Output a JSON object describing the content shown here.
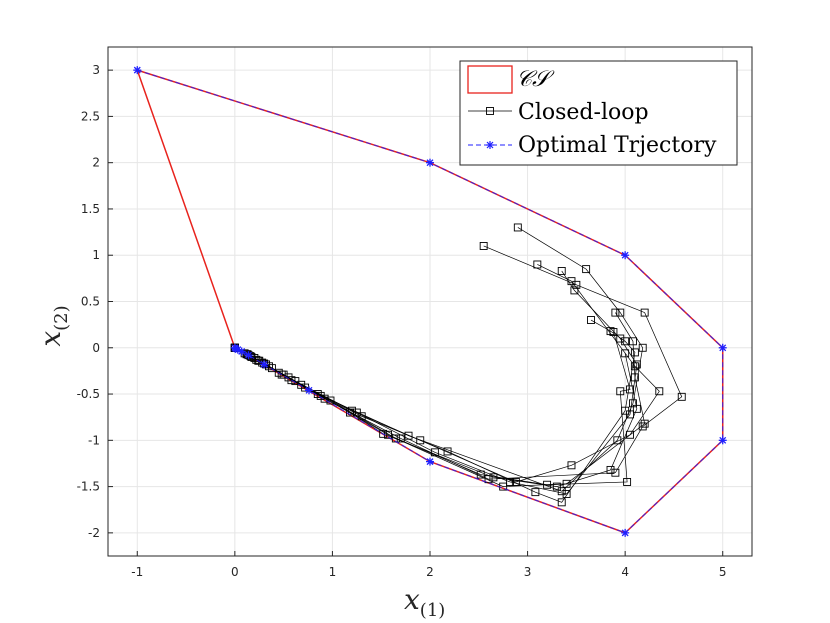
{
  "chart_data": {
    "type": "line",
    "xlim": [
      -1.3,
      5.3
    ],
    "ylim": [
      -2.25,
      3.25
    ],
    "xticks": [
      "-1",
      "0",
      "1",
      "2",
      "3",
      "4",
      "5"
    ],
    "yticks": [
      "-2",
      "-1.5",
      "-1",
      "-0.5",
      "0",
      "0.5",
      "1",
      "1.5",
      "2",
      "2.5",
      "3"
    ],
    "grid": true,
    "xlabel": {
      "main": "x",
      "sub": "(1)"
    },
    "ylabel": {
      "main": "x",
      "sub": "(2)"
    },
    "legend_position": "top-right",
    "constraint_set": {
      "name": "𝒞𝒮",
      "color": "#e8231d",
      "vertices": [
        [
          -1,
          3
        ],
        [
          2,
          2
        ],
        [
          4,
          1
        ],
        [
          5,
          0
        ],
        [
          5,
          -1
        ],
        [
          4,
          -2
        ],
        [
          2,
          -1.23
        ],
        [
          0,
          0
        ]
      ]
    },
    "closed_loop_name": "Closed-loop",
    "optimal_name": "Optimal Trjectory",
    "colors": {
      "closed_loop": "#000000",
      "optimal": "#1f1fff",
      "constraint": "#e8231d"
    },
    "optimal_points": [
      [
        -1,
        3
      ],
      [
        2,
        2
      ],
      [
        4,
        1
      ],
      [
        5,
        0
      ],
      [
        5,
        -1
      ],
      [
        4,
        -2
      ],
      [
        2,
        -1.23
      ],
      [
        0.76,
        -0.46
      ],
      [
        0.3,
        -0.18
      ],
      [
        0.14,
        -0.08
      ],
      [
        0.07,
        -0.04
      ],
      [
        0.03,
        -0.02
      ],
      [
        0.01,
        -0.01
      ],
      [
        0,
        0
      ]
    ],
    "closed_loop_series": [
      [
        [
          2.9,
          1.3
        ],
        [
          3.6,
          0.85
        ],
        [
          3.95,
          0.38
        ],
        [
          4.18,
          0.0
        ],
        [
          4.08,
          -0.6
        ],
        [
          3.92,
          -1.0
        ],
        [
          3.35,
          -1.55
        ],
        [
          1.78,
          -0.95
        ],
        [
          0.85,
          -0.5
        ],
        [
          0.45,
          -0.27
        ],
        [
          0.22,
          -0.13
        ],
        [
          0.1,
          -0.06
        ],
        [
          0,
          0
        ]
      ],
      [
        [
          2.55,
          1.1
        ],
        [
          3.5,
          0.68
        ],
        [
          4.2,
          0.38
        ],
        [
          4.58,
          -0.53
        ],
        [
          4.18,
          -0.85
        ],
        [
          3.9,
          -1.35
        ],
        [
          2.6,
          -1.42
        ],
        [
          1.7,
          -0.98
        ],
        [
          0.92,
          -0.55
        ],
        [
          0.48,
          -0.29
        ],
        [
          0.25,
          -0.14
        ],
        [
          0.12,
          -0.07
        ],
        [
          0,
          0
        ]
      ],
      [
        [
          3.1,
          0.9
        ],
        [
          3.45,
          0.72
        ],
        [
          4.1,
          -0.2
        ],
        [
          4.35,
          -0.47
        ],
        [
          4.05,
          -0.94
        ],
        [
          3.45,
          -1.27
        ],
        [
          2.88,
          -1.45
        ],
        [
          1.9,
          -1.0
        ],
        [
          1.2,
          -0.68
        ],
        [
          0.62,
          -0.36
        ],
        [
          0.3,
          -0.17
        ],
        [
          0.14,
          -0.08
        ],
        [
          0,
          0
        ]
      ],
      [
        [
          3.35,
          0.83
        ],
        [
          3.48,
          0.62
        ],
        [
          3.95,
          0.1
        ],
        [
          4.12,
          -0.18
        ],
        [
          4.05,
          -0.72
        ],
        [
          3.4,
          -1.58
        ],
        [
          2.82,
          -1.45
        ],
        [
          2.05,
          -1.13
        ],
        [
          1.25,
          -0.7
        ],
        [
          0.68,
          -0.4
        ],
        [
          0.35,
          -0.2
        ],
        [
          0.17,
          -0.1
        ],
        [
          0,
          0
        ]
      ],
      [
        [
          3.65,
          0.3
        ],
        [
          3.85,
          0.18
        ],
        [
          4.0,
          0.07
        ],
        [
          4.1,
          -0.05
        ],
        [
          4.0,
          -0.68
        ],
        [
          3.35,
          -1.67
        ],
        [
          3.08,
          -1.56
        ],
        [
          2.18,
          -1.12
        ],
        [
          1.3,
          -0.74
        ],
        [
          0.72,
          -0.43
        ],
        [
          0.38,
          -0.22
        ],
        [
          0.2,
          -0.11
        ],
        [
          0,
          0
        ]
      ],
      [
        [
          3.9,
          0.38
        ],
        [
          4.08,
          0.07
        ],
        [
          4.1,
          -0.32
        ],
        [
          4.2,
          -0.82
        ],
        [
          3.4,
          -1.47
        ],
        [
          2.75,
          -1.5
        ],
        [
          1.65,
          -0.98
        ],
        [
          0.98,
          -0.57
        ],
        [
          0.55,
          -0.32
        ],
        [
          0.28,
          -0.16
        ],
        [
          0.13,
          -0.07
        ],
        [
          0,
          0
        ]
      ],
      [
        [
          3.88,
          0.17
        ],
        [
          4.05,
          -0.45
        ],
        [
          3.95,
          -0.47
        ],
        [
          4.02,
          -1.45
        ],
        [
          3.2,
          -1.48
        ],
        [
          2.52,
          -1.37
        ],
        [
          1.57,
          -0.94
        ],
        [
          0.88,
          -0.52
        ],
        [
          0.5,
          -0.29
        ],
        [
          0.24,
          -0.14
        ],
        [
          0,
          0
        ]
      ],
      [
        [
          4.0,
          -0.06
        ],
        [
          4.12,
          -0.66
        ],
        [
          3.85,
          -1.32
        ],
        [
          3.3,
          -1.5
        ],
        [
          2.65,
          -1.4
        ],
        [
          1.52,
          -0.93
        ],
        [
          1.18,
          -0.7
        ],
        [
          0.58,
          -0.35
        ],
        [
          0.32,
          -0.18
        ],
        [
          0.16,
          -0.09
        ],
        [
          0,
          0
        ]
      ]
    ]
  }
}
